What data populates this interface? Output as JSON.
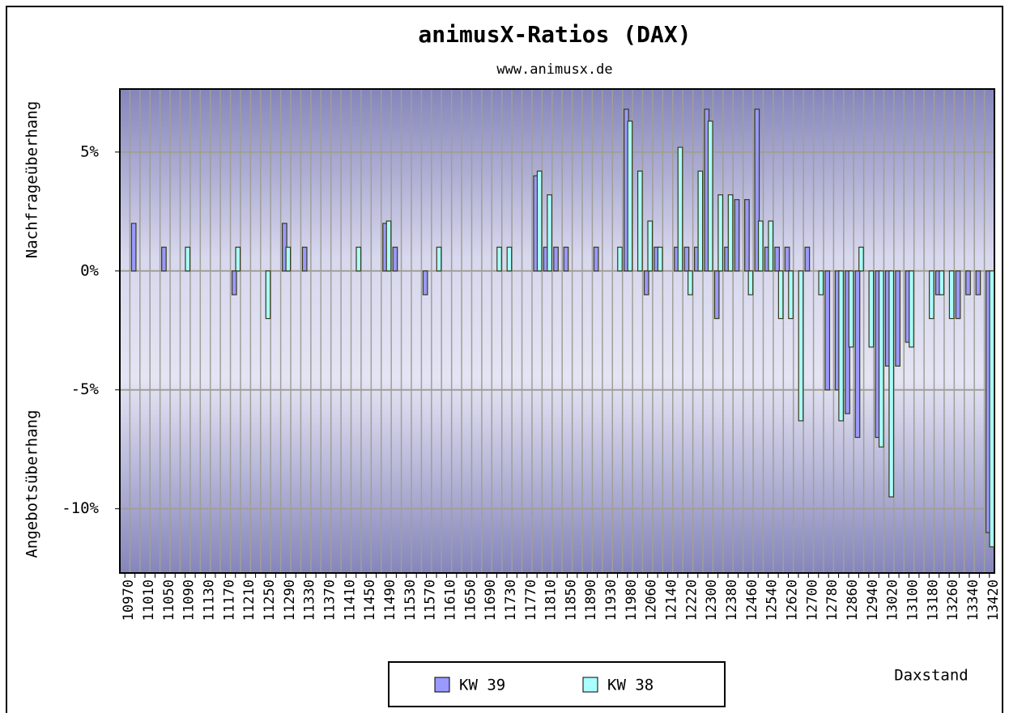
{
  "chart_data": {
    "type": "bar",
    "title": "animusX-Ratios (DAX)",
    "subtitle": "www.animusx.de",
    "y_label_top": "Nachfrageüberhang",
    "y_label_bottom": "Angebotsüberhang",
    "x_label": "Daxstand",
    "categories": [
      "10970",
      null,
      "11010",
      null,
      "11050",
      null,
      "11090",
      null,
      "11130",
      null,
      "11170",
      null,
      "11210",
      null,
      "11250",
      null,
      "11290",
      null,
      "11330",
      null,
      "11370",
      null,
      "11410",
      null,
      "11450",
      null,
      "11490",
      null,
      "11530",
      null,
      "11570",
      null,
      "11610",
      null,
      "11650",
      null,
      "11690",
      null,
      "11730",
      null,
      "11770",
      null,
      "11810",
      null,
      "11850",
      null,
      "11890",
      null,
      "11930",
      null,
      "11980",
      null,
      "12060",
      null,
      "12140",
      null,
      "12220",
      null,
      "12300",
      null,
      "12380",
      null,
      "12460",
      null,
      "12540",
      null,
      "12620",
      null,
      "12700",
      null,
      "12780",
      null,
      "12860",
      null,
      "12940",
      null,
      "13020",
      null,
      "13100",
      null,
      "13180",
      null,
      "13260",
      null,
      "13340",
      null,
      "13420"
    ],
    "series": [
      {
        "name": "KW 39",
        "color": "#9999ff",
        "values": [
          null,
          2,
          null,
          null,
          1,
          null,
          null,
          null,
          null,
          null,
          null,
          -1,
          null,
          null,
          null,
          null,
          2,
          null,
          1,
          null,
          null,
          null,
          null,
          null,
          null,
          null,
          2,
          1,
          null,
          null,
          -1,
          null,
          null,
          null,
          null,
          null,
          null,
          null,
          null,
          null,
          null,
          4,
          1,
          1,
          1,
          null,
          null,
          1,
          null,
          null,
          6.8,
          null,
          -1,
          1,
          null,
          1,
          1,
          1,
          6.8,
          -2,
          1,
          3,
          3,
          6.8,
          1,
          1,
          1,
          null,
          1,
          null,
          -5,
          -5,
          -6,
          -7,
          null,
          -7,
          -4,
          -4,
          -3,
          null,
          null,
          -1,
          null,
          -2,
          -1,
          -1,
          -11
        ]
      },
      {
        "name": "KW 38",
        "color": "#aaffff",
        "values": [
          null,
          null,
          null,
          null,
          null,
          null,
          1,
          null,
          null,
          null,
          null,
          1,
          null,
          null,
          -2,
          null,
          1,
          null,
          null,
          null,
          null,
          null,
          null,
          1,
          null,
          null,
          2.1,
          null,
          null,
          null,
          null,
          1,
          null,
          null,
          null,
          null,
          null,
          1,
          1,
          null,
          null,
          4.2,
          3.2,
          null,
          null,
          null,
          null,
          null,
          null,
          1,
          6.3,
          4.2,
          2.1,
          1,
          null,
          5.2,
          -1,
          4.2,
          6.3,
          3.2,
          3.2,
          null,
          -1,
          2.1,
          2.1,
          -2,
          -2,
          -6.3,
          null,
          -1,
          null,
          -6.3,
          -3.2,
          1,
          -3.2,
          -7.4,
          -9.5,
          null,
          -3.2,
          null,
          -2,
          -1,
          -2,
          null,
          null,
          null,
          -11.6
        ]
      }
    ],
    "ylim": [
      -12.7,
      7.65
    ],
    "yticks": [
      {
        "value": -10,
        "label": "-10%"
      },
      {
        "value": -5,
        "label": "-5%"
      },
      {
        "value": 0,
        "label": "0%"
      },
      {
        "value": 5,
        "label": "5%"
      }
    ],
    "grid": true
  }
}
